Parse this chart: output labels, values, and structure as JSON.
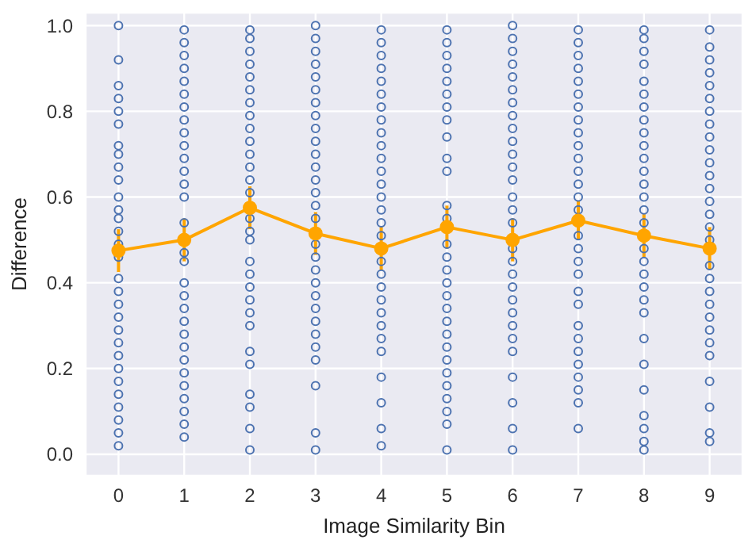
{
  "chart_data": {
    "type": "scatter",
    "xlabel": "Image Similarity Bin",
    "ylabel": "Difference",
    "xlim": [
      -0.5,
      9.5
    ],
    "xticks": [
      0,
      1,
      2,
      3,
      4,
      5,
      6,
      7,
      8,
      9
    ],
    "ylim": [
      -0.05,
      1.03
    ],
    "yticks": [
      {
        "value": 0,
        "label": "0.0"
      },
      {
        "value": 0.2,
        "label": "0.2"
      },
      {
        "value": 0.4,
        "label": "0.4"
      },
      {
        "value": 0.6,
        "label": "0.6"
      },
      {
        "value": 0.8,
        "label": "0.8"
      },
      {
        "value": 1,
        "label": "1.0"
      }
    ],
    "grid": true,
    "marker": "circle",
    "series": [
      {
        "type": "scatter",
        "color": "#4c72b0",
        "x": [
          0,
          0,
          0,
          0,
          0,
          0,
          0,
          0,
          0,
          0,
          0,
          0,
          0,
          0,
          0,
          0,
          0,
          0,
          0,
          0,
          0,
          0,
          0,
          0,
          0,
          0,
          0,
          0,
          0,
          0
        ],
        "values": [
          1.0,
          0.92,
          0.86,
          0.83,
          0.8,
          0.77,
          0.72,
          0.7,
          0.67,
          0.64,
          0.6,
          0.57,
          0.55,
          0.52,
          0.49,
          0.46,
          0.41,
          0.38,
          0.35,
          0.32,
          0.29,
          0.26,
          0.23,
          0.2,
          0.17,
          0.14,
          0.11,
          0.08,
          0.05,
          0.02
        ]
      },
      {
        "type": "scatter",
        "color": "#4c72b0",
        "x": [
          1,
          1,
          1,
          1,
          1,
          1,
          1,
          1,
          1,
          1,
          1,
          1,
          1,
          1,
          1,
          1,
          1,
          1,
          1,
          1,
          1,
          1,
          1,
          1,
          1,
          1,
          1,
          1,
          1,
          1
        ],
        "values": [
          0.99,
          0.96,
          0.93,
          0.9,
          0.87,
          0.84,
          0.81,
          0.78,
          0.75,
          0.72,
          0.69,
          0.66,
          0.63,
          0.6,
          0.54,
          0.47,
          0.45,
          0.4,
          0.37,
          0.34,
          0.31,
          0.28,
          0.25,
          0.22,
          0.19,
          0.16,
          0.13,
          0.1,
          0.07,
          0.04
        ]
      },
      {
        "type": "scatter",
        "color": "#4c72b0",
        "x": [
          2,
          2,
          2,
          2,
          2,
          2,
          2,
          2,
          2,
          2,
          2,
          2,
          2,
          2,
          2,
          2,
          2,
          2,
          2,
          2,
          2,
          2,
          2,
          2,
          2,
          2,
          2,
          2,
          2
        ],
        "values": [
          0.99,
          0.97,
          0.94,
          0.91,
          0.88,
          0.85,
          0.82,
          0.79,
          0.76,
          0.73,
          0.7,
          0.67,
          0.64,
          0.61,
          0.55,
          0.52,
          0.5,
          0.45,
          0.42,
          0.39,
          0.36,
          0.33,
          0.3,
          0.24,
          0.21,
          0.14,
          0.11,
          0.06,
          0.01
        ]
      },
      {
        "type": "scatter",
        "color": "#4c72b0",
        "x": [
          3,
          3,
          3,
          3,
          3,
          3,
          3,
          3,
          3,
          3,
          3,
          3,
          3,
          3,
          3,
          3,
          3,
          3,
          3,
          3,
          3,
          3,
          3,
          3,
          3,
          3,
          3,
          3,
          3
        ],
        "values": [
          1.0,
          0.97,
          0.94,
          0.91,
          0.88,
          0.85,
          0.82,
          0.79,
          0.76,
          0.73,
          0.7,
          0.67,
          0.64,
          0.61,
          0.58,
          0.55,
          0.49,
          0.46,
          0.43,
          0.4,
          0.37,
          0.34,
          0.31,
          0.28,
          0.25,
          0.22,
          0.16,
          0.05,
          0.01
        ]
      },
      {
        "type": "scatter",
        "color": "#4c72b0",
        "x": [
          4,
          4,
          4,
          4,
          4,
          4,
          4,
          4,
          4,
          4,
          4,
          4,
          4,
          4,
          4,
          4,
          4,
          4,
          4,
          4,
          4,
          4,
          4,
          4,
          4,
          4,
          4,
          4,
          4
        ],
        "values": [
          0.99,
          0.96,
          0.93,
          0.9,
          0.87,
          0.84,
          0.81,
          0.78,
          0.75,
          0.72,
          0.69,
          0.66,
          0.63,
          0.6,
          0.57,
          0.54,
          0.51,
          0.45,
          0.42,
          0.39,
          0.36,
          0.33,
          0.3,
          0.27,
          0.24,
          0.18,
          0.12,
          0.06,
          0.02
        ]
      },
      {
        "type": "scatter",
        "color": "#4c72b0",
        "x": [
          5,
          5,
          5,
          5,
          5,
          5,
          5,
          5,
          5,
          5,
          5,
          5,
          5,
          5,
          5,
          5,
          5,
          5,
          5,
          5,
          5,
          5,
          5,
          5,
          5,
          5,
          5,
          5,
          5
        ],
        "values": [
          0.99,
          0.96,
          0.93,
          0.9,
          0.87,
          0.84,
          0.81,
          0.78,
          0.74,
          0.69,
          0.66,
          0.58,
          0.55,
          0.49,
          0.46,
          0.43,
          0.4,
          0.37,
          0.34,
          0.31,
          0.28,
          0.25,
          0.22,
          0.19,
          0.16,
          0.13,
          0.1,
          0.07,
          0.01
        ]
      },
      {
        "type": "scatter",
        "color": "#4c72b0",
        "x": [
          6,
          6,
          6,
          6,
          6,
          6,
          6,
          6,
          6,
          6,
          6,
          6,
          6,
          6,
          6,
          6,
          6,
          6,
          6,
          6,
          6,
          6,
          6,
          6,
          6,
          6,
          6,
          6,
          6
        ],
        "values": [
          1.0,
          0.97,
          0.94,
          0.91,
          0.88,
          0.85,
          0.82,
          0.79,
          0.76,
          0.73,
          0.7,
          0.67,
          0.64,
          0.6,
          0.57,
          0.54,
          0.48,
          0.45,
          0.42,
          0.39,
          0.36,
          0.33,
          0.3,
          0.27,
          0.24,
          0.18,
          0.12,
          0.06,
          0.01
        ]
      },
      {
        "type": "scatter",
        "color": "#4c72b0",
        "x": [
          7,
          7,
          7,
          7,
          7,
          7,
          7,
          7,
          7,
          7,
          7,
          7,
          7,
          7,
          7,
          7,
          7,
          7,
          7,
          7,
          7,
          7,
          7,
          7,
          7,
          7,
          7,
          7,
          7
        ],
        "values": [
          0.99,
          0.96,
          0.93,
          0.9,
          0.87,
          0.84,
          0.81,
          0.78,
          0.75,
          0.72,
          0.69,
          0.66,
          0.63,
          0.6,
          0.57,
          0.51,
          0.48,
          0.45,
          0.42,
          0.38,
          0.35,
          0.3,
          0.27,
          0.24,
          0.21,
          0.18,
          0.15,
          0.12,
          0.06
        ]
      },
      {
        "type": "scatter",
        "color": "#4c72b0",
        "x": [
          8,
          8,
          8,
          8,
          8,
          8,
          8,
          8,
          8,
          8,
          8,
          8,
          8,
          8,
          8,
          8,
          8,
          8,
          8,
          8,
          8,
          8,
          8,
          8,
          8,
          8,
          8,
          8,
          8
        ],
        "values": [
          0.99,
          0.97,
          0.94,
          0.91,
          0.87,
          0.84,
          0.81,
          0.78,
          0.75,
          0.72,
          0.69,
          0.66,
          0.63,
          0.6,
          0.57,
          0.54,
          0.48,
          0.45,
          0.42,
          0.39,
          0.36,
          0.33,
          0.27,
          0.21,
          0.15,
          0.09,
          0.06,
          0.03,
          0.01
        ]
      },
      {
        "type": "scatter",
        "color": "#4c72b0",
        "x": [
          9,
          9,
          9,
          9,
          9,
          9,
          9,
          9,
          9,
          9,
          9,
          9,
          9,
          9,
          9,
          9,
          9,
          9,
          9,
          9,
          9,
          9,
          9,
          9,
          9,
          9,
          9,
          9,
          9
        ],
        "values": [
          0.99,
          0.95,
          0.92,
          0.89,
          0.86,
          0.83,
          0.8,
          0.77,
          0.74,
          0.71,
          0.68,
          0.65,
          0.62,
          0.59,
          0.56,
          0.53,
          0.5,
          0.44,
          0.41,
          0.38,
          0.35,
          0.32,
          0.29,
          0.26,
          0.23,
          0.17,
          0.11,
          0.05,
          0.03
        ]
      },
      {
        "type": "line",
        "color": "#ffa500",
        "x": [
          0,
          1,
          2,
          3,
          4,
          5,
          6,
          7,
          8,
          9
        ],
        "values": [
          0.475,
          0.5,
          0.575,
          0.515,
          0.48,
          0.53,
          0.5,
          0.545,
          0.51,
          0.48
        ],
        "errors": [
          0.05,
          0.05,
          0.05,
          0.05,
          0.05,
          0.05,
          0.05,
          0.045,
          0.05,
          0.05
        ]
      }
    ]
  }
}
